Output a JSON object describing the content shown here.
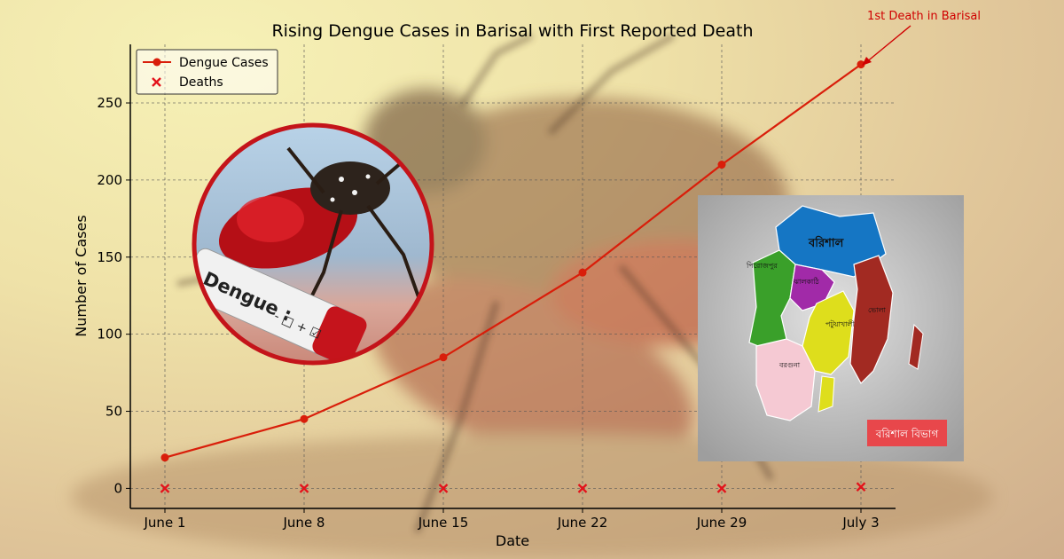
{
  "chart_data": {
    "type": "line",
    "title": "Rising Dengue Cases in Barisal with First Reported Death",
    "xlabel": "Date",
    "ylabel": "Number of Cases",
    "categories": [
      "June 1",
      "June 8",
      "June 15",
      "June 22",
      "June 29",
      "July 3"
    ],
    "ylim": [
      -13,
      288
    ],
    "yticks": [
      0,
      50,
      100,
      150,
      200,
      250
    ],
    "grid": true,
    "legend_position": "top-left",
    "series": [
      {
        "name": "Dengue Cases",
        "style": "line-marker",
        "color": "#d91e0a",
        "values": [
          20,
          45,
          85,
          140,
          210,
          275
        ]
      },
      {
        "name": "Deaths",
        "style": "x-marker",
        "color": "#e3121b",
        "values": [
          0,
          0,
          0,
          0,
          0,
          1
        ]
      }
    ],
    "annotation": {
      "text": "1st Death in Barisal",
      "category": "July 3",
      "value": 275,
      "color": "#d00000"
    }
  },
  "inset_photo": {
    "label_text": "Dengue :",
    "checkbox_signs": "- □ + ☑"
  },
  "map_panel": {
    "districts": [
      "বরিশাল",
      "পিরোজপুর",
      "ঝালকাঠি",
      "পটুয়াখালী",
      "বরগুনা",
      "ভোলা"
    ],
    "division_badge": "বরিশাল বিভাগ",
    "colors": [
      "#1576c4",
      "#3aa02a",
      "#a12aa8",
      "#dede1c",
      "#f5c9d3",
      "#a22a22"
    ]
  }
}
